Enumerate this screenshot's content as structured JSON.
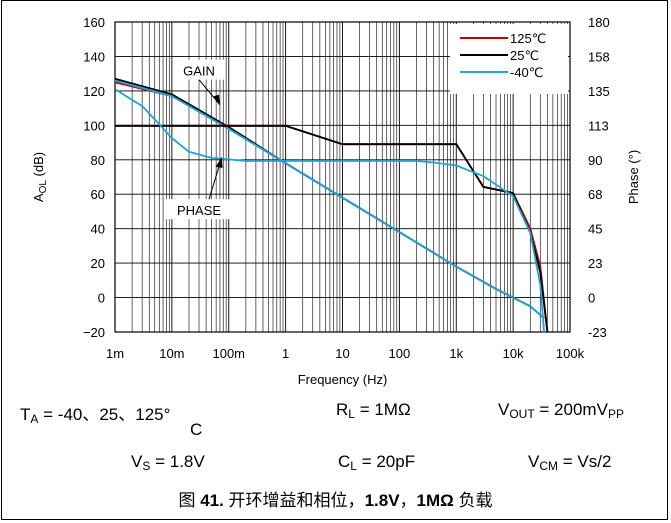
{
  "chart_data": {
    "type": "line",
    "xlabel": "Frequency (Hz)",
    "ylabel_left": "A_OL (dB)",
    "ylabel_right": "Phase (°)",
    "x_scale": "log",
    "xlim": [
      0.001,
      100000
    ],
    "ylim_left": [
      -20,
      160
    ],
    "ylim_right": [
      -23,
      180
    ],
    "x_ticks": [
      "1m",
      "10m",
      "100m",
      "1",
      "10",
      "100",
      "1k",
      "10k",
      "100k"
    ],
    "y_ticks_left": [
      "160",
      "140",
      "120",
      "100",
      "80",
      "60",
      "40",
      "20",
      "0",
      "−20"
    ],
    "y_ticks_right": [
      "180",
      "158",
      "135",
      "113",
      "90",
      "68",
      "45",
      "23",
      "0",
      "-23"
    ],
    "grid": true,
    "legend_position": "top-right",
    "annotations": [
      "GAIN",
      "PHASE"
    ],
    "series": [
      {
        "name": "125℃",
        "color": "#c00000",
        "kind": "gain",
        "x": [
          0.001,
          0.01,
          0.1,
          1,
          10,
          100,
          1000,
          5000,
          20000,
          35000
        ],
        "y": [
          125,
          117,
          98,
          78,
          58,
          38,
          18,
          5,
          -5,
          -12
        ]
      },
      {
        "name": "25℃",
        "color": "#000000",
        "kind": "gain",
        "x": [
          0.001,
          0.01,
          0.1,
          1,
          10,
          100,
          1000,
          5000,
          20000,
          35000
        ],
        "y": [
          127,
          118,
          99,
          78,
          58,
          38,
          18,
          5,
          -5,
          -12
        ]
      },
      {
        "name": "-40℃",
        "color": "#1aa7d8",
        "kind": "gain",
        "x": [
          0.001,
          0.01,
          0.1,
          1,
          10,
          100,
          1000,
          5000,
          20000,
          35000
        ],
        "y": [
          126,
          117,
          98,
          78,
          58,
          38,
          18,
          5,
          -5,
          -12
        ]
      },
      {
        "name": "125℃",
        "color": "#c00000",
        "kind": "phase",
        "x": [
          0.001,
          0.1,
          1,
          10,
          100,
          300,
          1000,
          3000,
          10000,
          20000,
          30000,
          40000
        ],
        "y": [
          112,
          112,
          112,
          100,
          100,
          100,
          100,
          72,
          68,
          45,
          20,
          -23
        ]
      },
      {
        "name": "25℃",
        "color": "#000000",
        "kind": "phase",
        "x": [
          0.001,
          0.1,
          1,
          10,
          100,
          300,
          1000,
          3000,
          10000,
          20000,
          30000,
          40000
        ],
        "y": [
          112,
          112,
          112,
          100,
          100,
          100,
          100,
          72,
          68,
          42,
          16,
          -23
        ]
      },
      {
        "name": "-40℃",
        "color": "#1aa7d8",
        "kind": "phase",
        "x": [
          0.001,
          0.003,
          0.006,
          0.01,
          0.02,
          0.05,
          0.1,
          0.2,
          1,
          10,
          100,
          200,
          400,
          1000,
          3000,
          10000,
          20000,
          30000,
          35000
        ],
        "y": [
          136,
          125,
          113,
          104,
          95,
          91,
          90,
          89,
          89,
          89,
          89,
          89,
          88,
          86,
          79,
          66,
          42,
          8,
          -23
        ]
      }
    ]
  },
  "conditions": {
    "ta": "T",
    "ta_sub": "A",
    "ta_val": " = -40、25、125°",
    "ta_unit": "C",
    "rl": "R",
    "rl_sub": "L",
    "rl_val": " = 1MΩ",
    "vout": "V",
    "vout_sub": "OUT",
    "vout_val": " = 200mV",
    "vout_sub2": "PP",
    "vs": "V",
    "vs_sub": "S",
    "vs_val": " = 1.8V",
    "cl": "C",
    "cl_sub": "L",
    "cl_val": " = 20pF",
    "vcm": "V",
    "vcm_sub": "CM",
    "vcm_val": " = Vs/2"
  },
  "caption": {
    "prefix": "图 ",
    "number": "41.",
    "text1": " 开环增益和相位，",
    "bold1": "1.8V",
    "text2": "，",
    "bold2": "1MΩ",
    "text3": " 负载"
  }
}
